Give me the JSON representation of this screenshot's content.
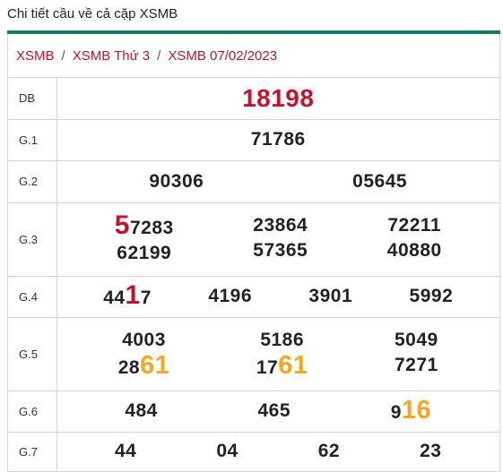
{
  "page_title": "Chi tiết cầu về cả cặp XSMB",
  "breadcrumb": [
    "XSMB",
    "XSMB Thứ 3",
    "XSMB 07/02/2023"
  ],
  "colors": {
    "accent": "#147b6b",
    "brand_red": "#c4122f",
    "highlight_orange": "#f5a623"
  },
  "rows": [
    {
      "label": "DB",
      "numbers": [
        "18198"
      ]
    },
    {
      "label": "G.1",
      "numbers": [
        "71786"
      ]
    },
    {
      "label": "G.2",
      "numbers": [
        "90306",
        "05645"
      ]
    },
    {
      "label": "G.3",
      "numbers": [
        "57283",
        "23864",
        "72211",
        "62199",
        "57365",
        "40880"
      ]
    },
    {
      "label": "G.4",
      "numbers": [
        "4417",
        "4196",
        "3901",
        "5992"
      ]
    },
    {
      "label": "G.5",
      "numbers": [
        "4003",
        "5186",
        "5049",
        "2861",
        "1761",
        "7271"
      ]
    },
    {
      "label": "G.6",
      "numbers": [
        "484",
        "465",
        "916"
      ]
    },
    {
      "label": "G.7",
      "numbers": [
        "44",
        "04",
        "62",
        "23"
      ]
    }
  ],
  "highlights": {
    "g3_first": {
      "prefix": "5",
      "rest": "7283"
    },
    "g4_first": {
      "pre": "44",
      "mark": "1",
      "post": "7"
    },
    "g5_4": {
      "pre": "28",
      "mark": "61"
    },
    "g5_5": {
      "pre": "17",
      "mark": "61"
    },
    "g6_3": {
      "pre": "9",
      "mark": "16"
    }
  }
}
